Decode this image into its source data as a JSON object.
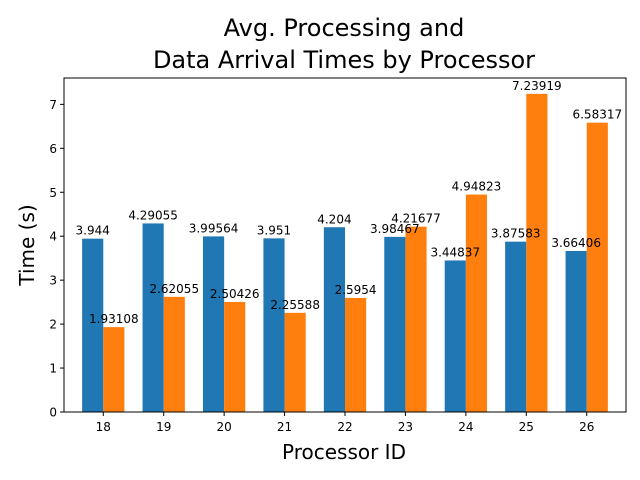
{
  "chart_data": {
    "type": "bar",
    "title_lines": [
      "Avg. Processing and",
      "Data Arrival Times by Processor"
    ],
    "xlabel": "Processor ID",
    "ylabel": "Time (s)",
    "categories": [
      "18",
      "19",
      "20",
      "21",
      "22",
      "23",
      "24",
      "25",
      "26"
    ],
    "series": [
      {
        "color": "#1f77b4",
        "values": [
          3.944,
          4.29055,
          3.99564,
          3.951,
          4.204,
          3.98467,
          3.44837,
          3.87583,
          3.66406
        ],
        "value_labels": [
          "3.944",
          "4.29055",
          "3.99564",
          "3.951",
          "4.204",
          "3.98467",
          "3.44837",
          "3.87583",
          "3.66406"
        ]
      },
      {
        "color": "#ff7f0e",
        "values": [
          1.93108,
          2.62055,
          2.50426,
          2.25588,
          2.5954,
          4.21677,
          4.94823,
          7.23919,
          6.58317
        ],
        "value_labels": [
          "1.93108",
          "2.62055",
          "2.50426",
          "2.25588",
          "2.5954",
          "4.21677",
          "4.94823",
          "7.23919",
          "6.58317"
        ]
      }
    ],
    "ylim": [
      0,
      7.6
    ],
    "yticks": [
      0,
      1,
      2,
      3,
      4,
      5,
      6,
      7
    ],
    "ytick_labels": [
      "0",
      "1",
      "2",
      "3",
      "4",
      "5",
      "6",
      "7"
    ],
    "grid": false,
    "legend": "none"
  }
}
